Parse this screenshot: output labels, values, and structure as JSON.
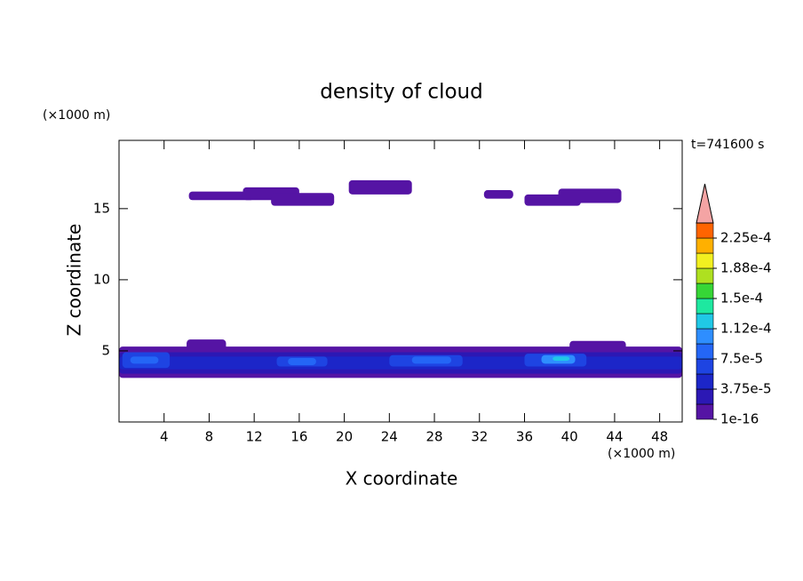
{
  "chart_data": {
    "type": "contour",
    "title": "density of cloud",
    "x_label": "X coordinate",
    "y_label": "Z coordinate",
    "x_unit": "(×1000 m)",
    "y_unit": "(×1000 m)",
    "time_label": "t=741600 s",
    "xlim": [
      0,
      50
    ],
    "ylim": [
      0,
      19.8
    ],
    "xticks": [
      4,
      8,
      12,
      16,
      20,
      24,
      28,
      32,
      36,
      40,
      44,
      48
    ],
    "yticks": [
      5,
      10,
      15
    ],
    "levels": [
      1e-16,
      1.875e-05,
      3.75e-05,
      5.625e-05,
      7.5e-05,
      9.375e-05,
      0.0001125,
      0.00013125,
      0.00015,
      0.00016875,
      0.0001875,
      0.00020625,
      0.000225,
      0.00024375
    ],
    "colors": [
      "#5514a4",
      "#2c18b4",
      "#1c26c8",
      "#1e44e2",
      "#2466f6",
      "#2e8eff",
      "#20c8e6",
      "#1ee8a0",
      "#36d636",
      "#aee020",
      "#f2f020",
      "#ffb000",
      "#ff6400"
    ],
    "extend_color": "#f4a4a4",
    "colorbar_ticks": [
      {
        "value": 1e-16,
        "label": "1e-16"
      },
      {
        "value": 3.75e-05,
        "label": "3.75e-5"
      },
      {
        "value": 7.5e-05,
        "label": "7.5e-5"
      },
      {
        "value": 0.0001125,
        "label": "1.12e-4"
      },
      {
        "value": 0.00015,
        "label": "1.5e-4"
      },
      {
        "value": 0.0001875,
        "label": "1.88e-4"
      },
      {
        "value": 0.000225,
        "label": "2.25e-4"
      }
    ],
    "regions": [
      {
        "x": [
          6.2,
          12.0
        ],
        "z": [
          15.6,
          16.2
        ],
        "value": 1e-05
      },
      {
        "x": [
          11.0,
          16.0
        ],
        "z": [
          15.6,
          16.5
        ],
        "value": 1e-05
      },
      {
        "x": [
          13.5,
          19.1
        ],
        "z": [
          15.2,
          16.1
        ],
        "value": 1e-05
      },
      {
        "x": [
          20.4,
          26.0
        ],
        "z": [
          16.0,
          17.0
        ],
        "value": 1e-05
      },
      {
        "x": [
          32.4,
          35.0
        ],
        "z": [
          15.7,
          16.3
        ],
        "value": 1e-05
      },
      {
        "x": [
          36.0,
          41.0
        ],
        "z": [
          15.2,
          16.0
        ],
        "value": 1e-05
      },
      {
        "x": [
          39.0,
          44.6
        ],
        "z": [
          15.4,
          16.4
        ],
        "value": 1e-05
      },
      {
        "x": [
          0.0,
          50.0
        ],
        "z": [
          3.1,
          5.3
        ],
        "value": 1e-05
      },
      {
        "x": [
          6.0,
          9.5
        ],
        "z": [
          5.0,
          5.8
        ],
        "value": 1e-05
      },
      {
        "x": [
          40.0,
          45.0
        ],
        "z": [
          4.6,
          5.7
        ],
        "value": 1e-05
      },
      {
        "x": [
          0.0,
          50.0
        ],
        "z": [
          3.4,
          4.9
        ],
        "value": 3e-05
      },
      {
        "x": [
          0.0,
          50.0
        ],
        "z": [
          3.7,
          4.6
        ],
        "value": 5e-05
      },
      {
        "x": [
          0.3,
          4.5
        ],
        "z": [
          3.8,
          4.9
        ],
        "value": 7e-05
      },
      {
        "x": [
          14.0,
          18.5
        ],
        "z": [
          3.9,
          4.6
        ],
        "value": 7e-05
      },
      {
        "x": [
          24.0,
          30.5
        ],
        "z": [
          3.9,
          4.7
        ],
        "value": 7e-05
      },
      {
        "x": [
          36.0,
          41.5
        ],
        "z": [
          3.9,
          4.8
        ],
        "value": 7e-05
      },
      {
        "x": [
          1.0,
          3.5
        ],
        "z": [
          4.1,
          4.6
        ],
        "value": 8e-05
      },
      {
        "x": [
          15.0,
          17.5
        ],
        "z": [
          4.0,
          4.5
        ],
        "value": 8e-05
      },
      {
        "x": [
          26.0,
          29.5
        ],
        "z": [
          4.1,
          4.6
        ],
        "value": 8e-05
      },
      {
        "x": [
          37.5,
          40.5
        ],
        "z": [
          4.1,
          4.7
        ],
        "value": 9.5e-05
      },
      {
        "x": [
          38.5,
          40.0
        ],
        "z": [
          4.3,
          4.6
        ],
        "value": 0.000115
      }
    ]
  }
}
